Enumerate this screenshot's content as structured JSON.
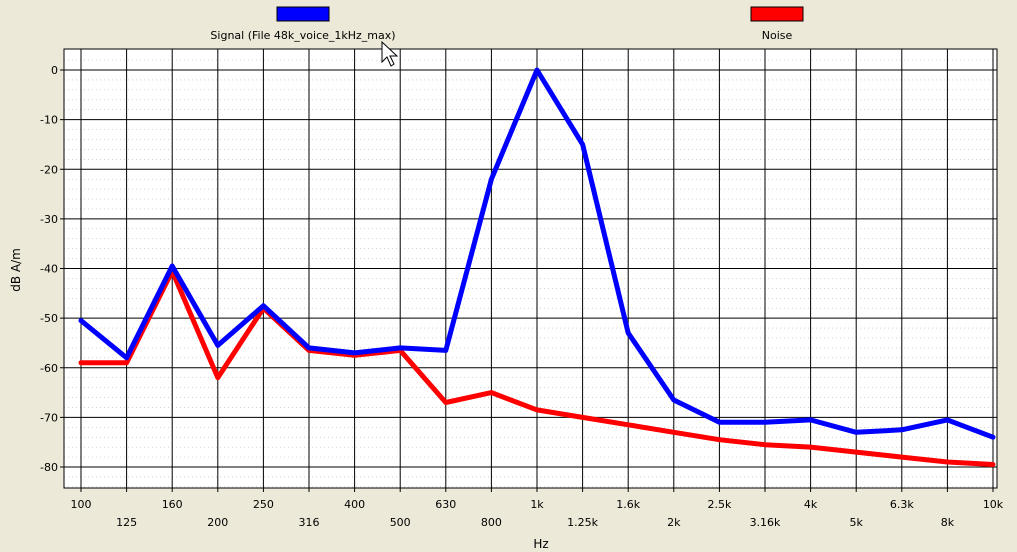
{
  "chart_data": {
    "type": "line",
    "title": "",
    "xlabel": "Hz",
    "ylabel": "dB A/m",
    "ylim": [
      -84,
      3
    ],
    "grid": true,
    "x_scale": "log",
    "legend_placement": "top",
    "yticks": [
      0,
      -10,
      -20,
      -30,
      -40,
      -50,
      -60,
      -70,
      -80
    ],
    "ytick_labels": [
      "0",
      "-10",
      "-20",
      "-30",
      "-40",
      "-50",
      "-60",
      "-70",
      "-80"
    ],
    "xticks": [
      100,
      125,
      160,
      200,
      250,
      316,
      400,
      500,
      630,
      800,
      1000,
      1250,
      1600,
      2000,
      2500,
      3160,
      4000,
      5000,
      6300,
      8000,
      10000
    ],
    "xtick_labels": [
      "100",
      "125",
      "160",
      "200",
      "250",
      "316",
      "400",
      "500",
      "630",
      "800",
      "1k",
      "1.25k",
      "1.6k",
      "2k",
      "2.5k",
      "3.16k",
      "4k",
      "5k",
      "6.3k",
      "8k",
      "10k"
    ],
    "x": [
      100,
      125,
      160,
      200,
      250,
      316,
      400,
      500,
      630,
      800,
      1000,
      1250,
      1600,
      2000,
      2500,
      3160,
      4000,
      5000,
      6300,
      8000,
      10000
    ],
    "series": [
      {
        "name": "Signal (File 48k_voice_1kHz_max)",
        "color": "#0000ff",
        "values": [
          -50.5,
          -58,
          -39.5,
          -55.5,
          -47.5,
          -56,
          -57,
          -56,
          -56.5,
          -22,
          0,
          -15,
          -53,
          -66.5,
          -71,
          -71,
          -70.5,
          -73,
          -72.5,
          -70.5,
          -74
        ]
      },
      {
        "name": "Noise",
        "color": "#ff0000",
        "values": [
          -59,
          -59,
          -40.5,
          -62,
          -48,
          -56.5,
          -57.5,
          -56.5,
          -67,
          -65,
          -68.5,
          -70,
          -71.5,
          -73,
          -74.5,
          -75.5,
          -76,
          -77,
          -78,
          -79,
          -79.5
        ]
      }
    ]
  }
}
